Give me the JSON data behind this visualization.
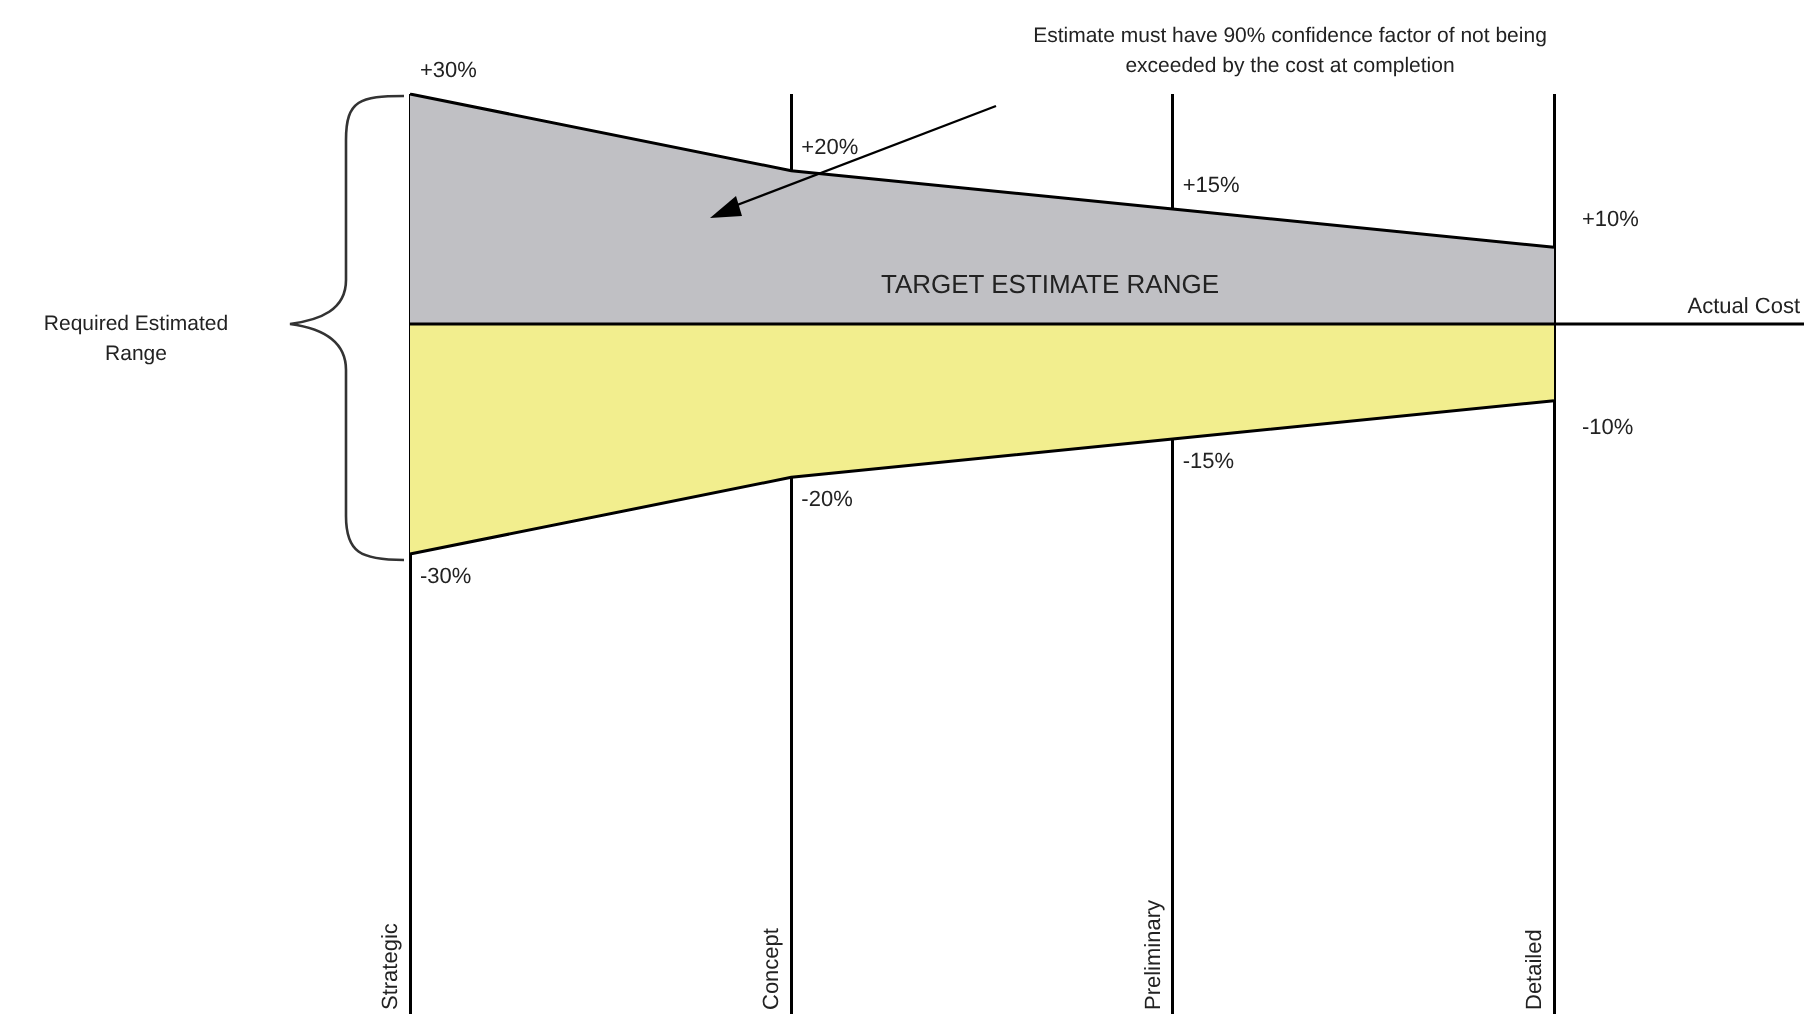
{
  "chart_data": {
    "type": "area",
    "categories": [
      "Strategic",
      "Concept",
      "Preliminary",
      "Detailed"
    ],
    "series": [
      {
        "color": "#c0c0c4",
        "values": [
          30,
          20,
          15,
          10
        ],
        "value_labels": [
          "+30%",
          "+20%",
          "+15%",
          "+10%"
        ]
      },
      {
        "color": "#f2ee8e",
        "values": [
          -30,
          -20,
          -15,
          -10
        ],
        "value_labels": [
          "-30%",
          "-20%",
          "-15%",
          "-10%"
        ]
      }
    ],
    "grid": "x",
    "legend": false,
    "tick_labels": "x",
    "ref_lines": [
      {
        "axis": "y",
        "value": 0,
        "label": "Actual Cost"
      }
    ],
    "annotations": [
      "TARGET ESTIMATE RANGE",
      "Estimate must have 90% confidence factor of not being exceeded by the cost at completion",
      "Required Estimated Range"
    ]
  }
}
